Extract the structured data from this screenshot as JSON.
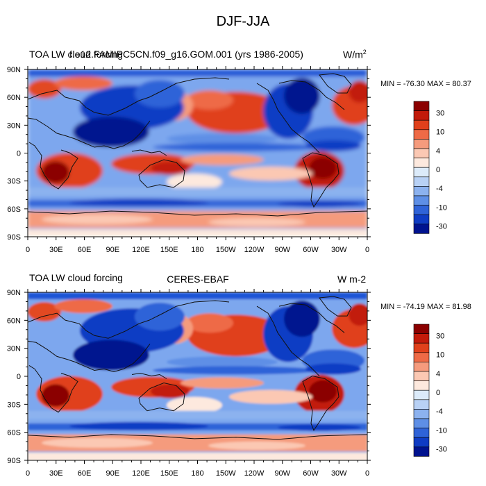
{
  "figure": {
    "title": "DJF-JJA"
  },
  "panels": [
    {
      "left_title": "TOA LW cloud forcing",
      "center_title": "f.e12.FAMIPC5CN.f09_g16.GOM.001 (yrs 1986-2005)",
      "units": "W/m",
      "units_sup": "2",
      "stats": "MIN = -76.30 MAX =  80.37"
    },
    {
      "left_title": "TOA LW cloud forcing",
      "center_title": "CERES-EBAF",
      "units": "W m-2",
      "units_sup": "",
      "stats": "MIN = -74.19 MAX =  81.98"
    }
  ],
  "axes": {
    "lat_labels": [
      "90N",
      "60N",
      "30N",
      "0",
      "30S",
      "60S",
      "90S"
    ],
    "lon_labels": [
      "0",
      "30E",
      "60E",
      "90E",
      "120E",
      "150E",
      "180",
      "150W",
      "120W",
      "90W",
      "60W",
      "30W",
      "0"
    ]
  },
  "colorbar": {
    "tick_labels": [
      "30",
      "10",
      "4",
      "0",
      "-4",
      "-10",
      "-30"
    ],
    "colors": [
      "#8b0000",
      "#c21a0a",
      "#e0401b",
      "#ee6a46",
      "#f59b7d",
      "#fbc8b3",
      "#fde9de",
      "#dcebfa",
      "#b8d1f5",
      "#8cb2ef",
      "#5e8fe6",
      "#2f63d8",
      "#0f3cc4",
      "#00138f"
    ]
  }
}
